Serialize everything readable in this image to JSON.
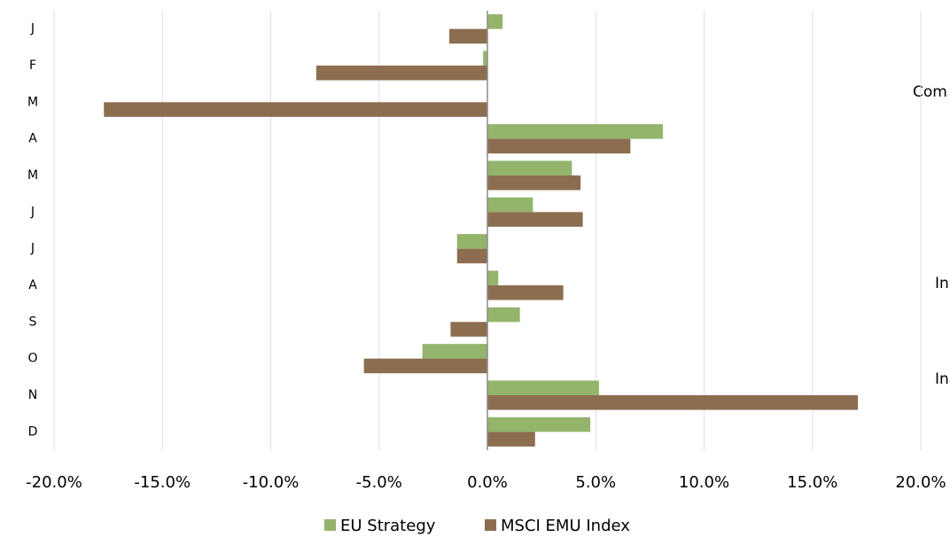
{
  "chart_data": {
    "type": "hbar",
    "categories": [
      "J",
      "F",
      "M",
      "A",
      "M",
      "J",
      "J",
      "A",
      "S",
      "O",
      "N",
      "D"
    ],
    "series": [
      {
        "name": "EU Strategy",
        "color": "#93b46b",
        "values": [
          0.7,
          -0.2,
          0,
          8.1,
          3.9,
          2.1,
          -1.4,
          0.5,
          1.5,
          -3.0,
          5.15,
          4.75
        ]
      },
      {
        "name": "MSCI EMU Index",
        "color": "#8c6d4f",
        "values": [
          -1.76,
          -7.9,
          -17.7,
          6.6,
          4.3,
          4.4,
          -1.4,
          3.5,
          -1.7,
          -5.7,
          17.1,
          2.2
        ]
      }
    ],
    "xlim": [
      -20,
      20
    ],
    "xticks": [
      {
        "value": -20,
        "label": "-20.0%"
      },
      {
        "value": -15,
        "label": "-15.0%"
      },
      {
        "value": -10,
        "label": "-10.0%"
      },
      {
        "value": -5,
        "label": "-5.0%"
      },
      {
        "value": 0,
        "label": "0.0%"
      },
      {
        "value": 5,
        "label": "5.0%"
      },
      {
        "value": 10,
        "label": "10.0%"
      },
      {
        "value": 15,
        "label": "15.0%"
      },
      {
        "value": 20,
        "label": "20.0%"
      }
    ],
    "grid": true,
    "legend": "bottom",
    "annotations": [
      "Com",
      "In",
      "In"
    ]
  }
}
